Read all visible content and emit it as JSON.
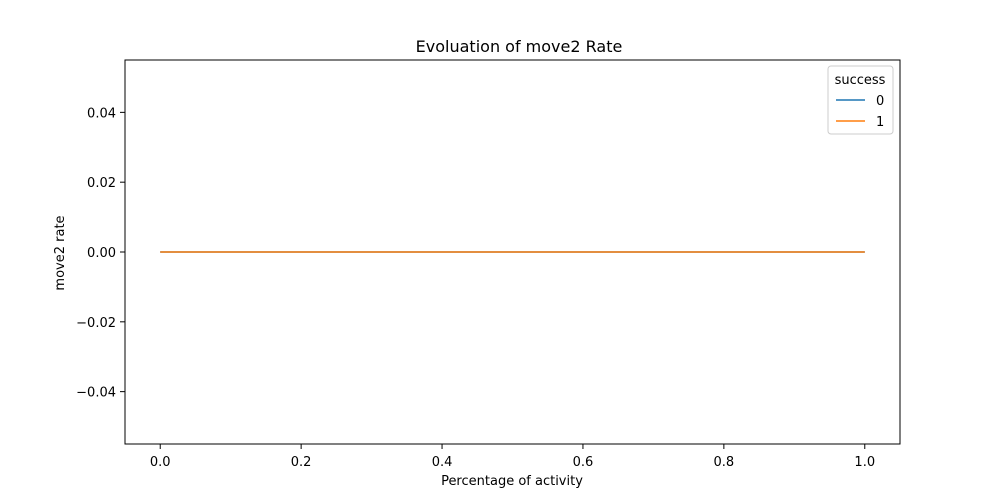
{
  "chart_data": {
    "type": "line",
    "title": "Evoluation of move2 Rate",
    "xlabel": "Percentage of activity",
    "ylabel": "move2 rate",
    "xlim": [
      -0.05,
      1.05
    ],
    "ylim": [
      -0.055,
      0.055
    ],
    "xticks": [
      0.0,
      0.2,
      0.4,
      0.6,
      0.8,
      1.0
    ],
    "xtick_labels": [
      "0.0",
      "0.2",
      "0.4",
      "0.6",
      "0.8",
      "1.0"
    ],
    "yticks": [
      0.04,
      0.02,
      0.0,
      -0.02,
      -0.04
    ],
    "ytick_labels": [
      "0.04",
      "0.02",
      "0.00",
      "−0.02",
      "−0.04"
    ],
    "grid": false,
    "legend": {
      "title": "success",
      "placement": "top-right"
    },
    "series": [
      {
        "name": "0",
        "color": "#1f77b4",
        "x": [
          0.0,
          0.1,
          0.2,
          0.3,
          0.4,
          0.5,
          0.6,
          0.7,
          0.8,
          0.9,
          1.0
        ],
        "y": [
          0,
          0,
          0,
          0,
          0,
          0,
          0,
          0,
          0,
          0,
          0
        ]
      },
      {
        "name": "1",
        "color": "#ff7f0e",
        "x": [
          0.0,
          0.1,
          0.2,
          0.3,
          0.4,
          0.5,
          0.6,
          0.7,
          0.8,
          0.9,
          1.0
        ],
        "y": [
          0,
          0,
          0,
          0,
          0,
          0,
          0,
          0,
          0,
          0,
          0
        ]
      }
    ]
  }
}
